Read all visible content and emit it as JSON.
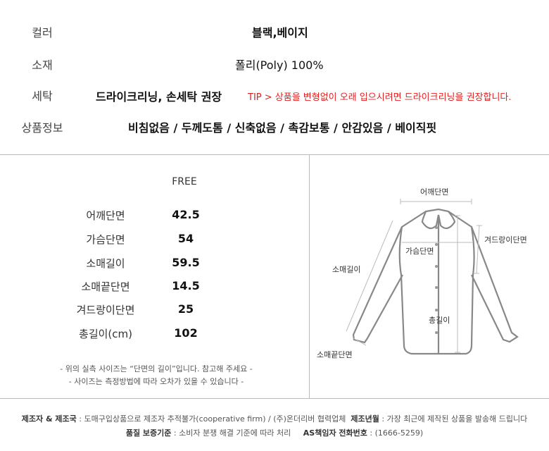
{
  "info": {
    "rows": [
      {
        "label": "컬러",
        "value": "블랙,베이지"
      },
      {
        "label": "소재",
        "value": "폴리(Poly) 100%"
      },
      {
        "label": "세탁",
        "value": "드라이크리닝, 손세탁 권장",
        "tip": "TIP > 상품을 변형없이 오래 입으시려면 드라이크리닝을 권장합니다."
      },
      {
        "label": "상품정보",
        "value": "비침없음 / 두께도톰 / 신축없음 / 촉감보통 / 안감있음 / 베이직핏"
      }
    ],
    "tip_color": "#e02020"
  },
  "size_table": {
    "header": "FREE",
    "rows": [
      {
        "label": "어깨단면",
        "value": "42.5"
      },
      {
        "label": "가슴단면",
        "value": "54"
      },
      {
        "label": "소매길이",
        "value": "59.5"
      },
      {
        "label": "소매끝단면",
        "value": "14.5"
      },
      {
        "label": "겨드랑이단면",
        "value": "25"
      },
      {
        "label": "총길이(cm)",
        "value": "102"
      }
    ],
    "notes": [
      "- 위의 실측 사이즈는 “단면의 길이”입니다. 참고해 주세요 -",
      "- 사이즈는 측정방법에 따라 오차가 있을 수 있습니다 -"
    ]
  },
  "diagram": {
    "shoulder": "어깨단면",
    "armpit": "겨드랑이단면",
    "chest": "가슴단면",
    "sleeve": "소매길이",
    "total": "총길이",
    "cuff": "소매끝단면"
  },
  "footer": {
    "maker_label": "제조자 & 제조국",
    "maker_value": ": 도매구입상품으로 제조자 추적불가(cooperative firm) / (주)온더리버 협력업체",
    "date_label": "제조년월",
    "date_value": ": 가장 최근에 제작된 상품을 발송해 드립니다",
    "quality_label": "품질 보증기준",
    "quality_value": ": 소비자 분쟁 해결 기준에 따라 처리",
    "as_label": "AS책임자 전화번호",
    "as_value": ": (1666-5259)"
  }
}
